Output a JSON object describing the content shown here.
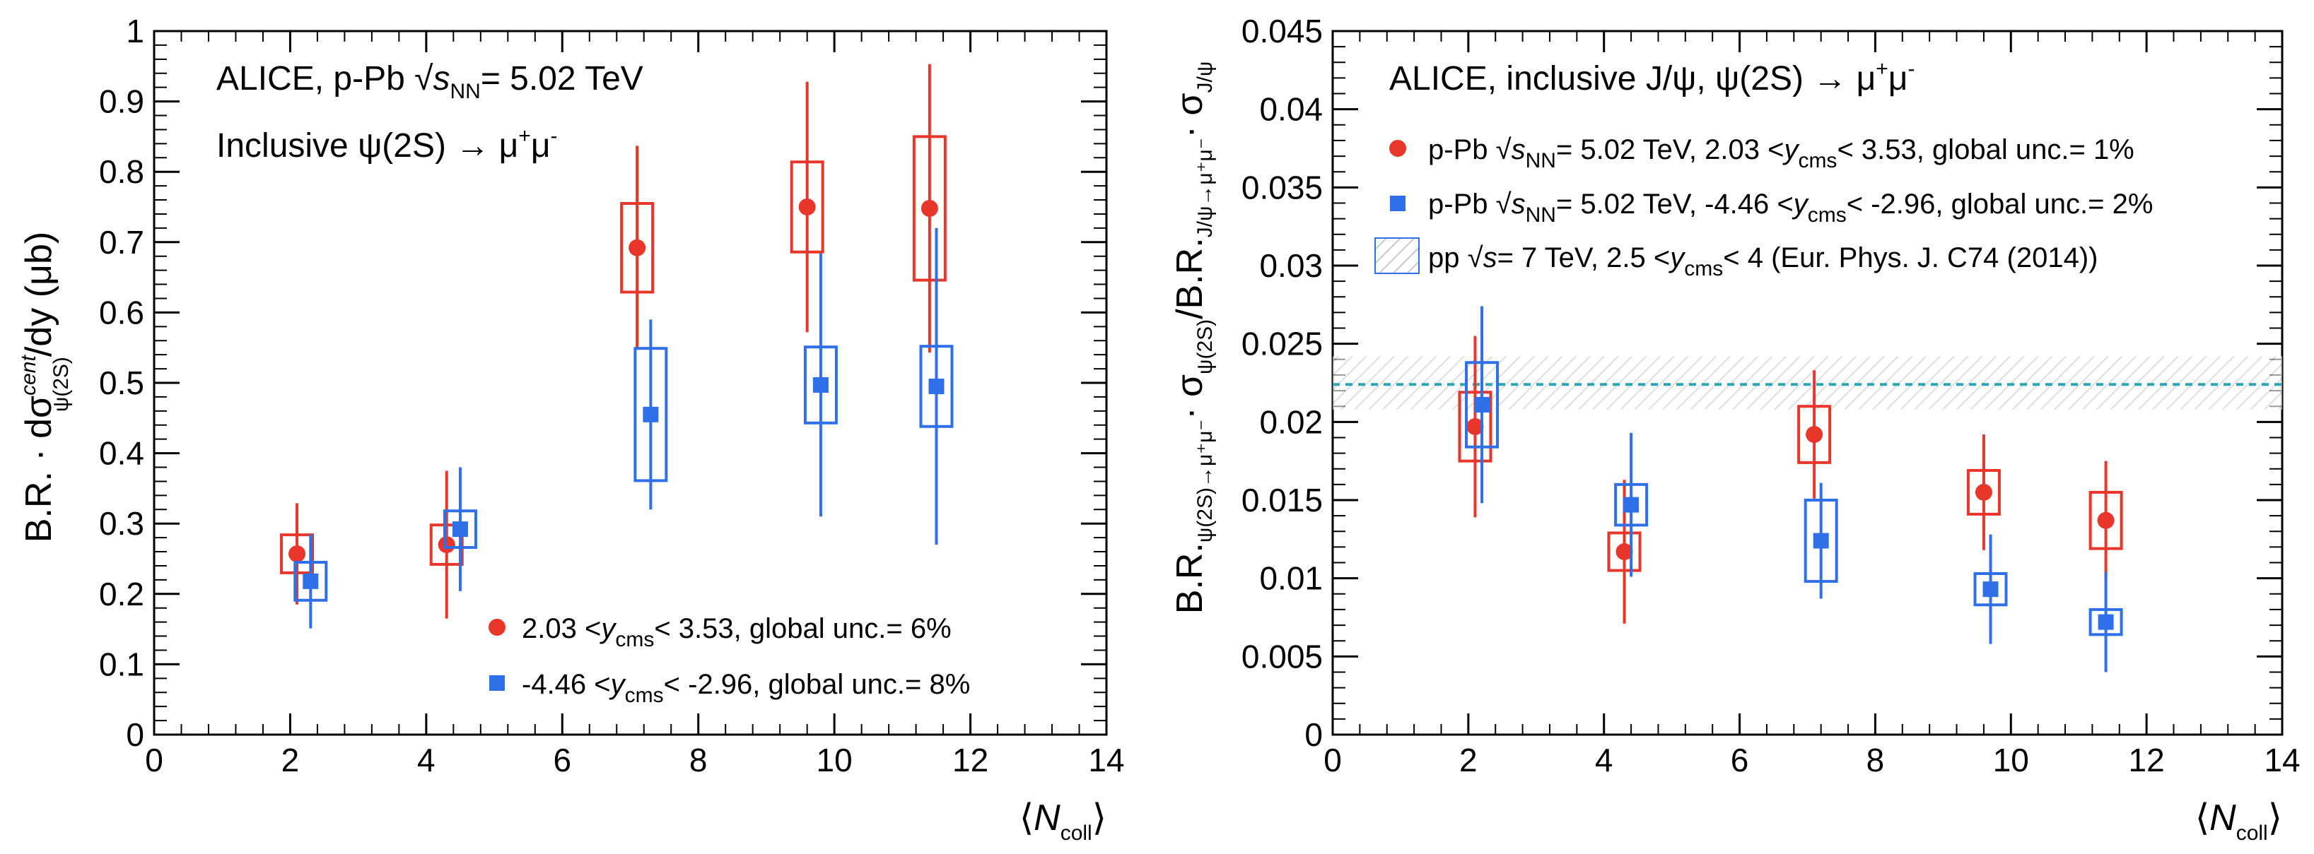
{
  "colors": {
    "red": "#e8372a",
    "blue": "#2f6fe8",
    "ref": "#2aa6b8",
    "hatch": "#c8c8c8"
  },
  "chart_data": [
    {
      "type": "scatter",
      "panel": "left",
      "title_lines": [
        "ALICE, p-Pb √sNN = 5.02 TeV",
        "Inclusive ψ(2S) → μ+μ-"
      ],
      "title_parts": {
        "l1_a": "ALICE, p-Pb ",
        "l1_sqrt": "√",
        "l1_s": "s",
        "l1_nn": "NN",
        "l1_b": "= 5.02 TeV",
        "l2_a": "Inclusive ψ(2S) → μ",
        "l2_plus": "+",
        "l2_mu": "μ",
        "l2_minus": "-"
      },
      "xlabel": "⟨Ncoll⟩",
      "xlabel_parts": {
        "open": "⟨",
        "N": "N",
        "sub": "coll",
        "close": "⟩"
      },
      "ylabel": "B.R. · dσcent ψ(2S) / dy (μb)",
      "ylabel_parts": {
        "main": "B.R. · dσ",
        "sup": "cent",
        "sub": "ψ(2S)",
        "rest": "/dy (μb)"
      },
      "xlim": [
        0,
        14
      ],
      "ylim": [
        0,
        1
      ],
      "xticks": [
        "0",
        "2",
        "4",
        "6",
        "8",
        "10",
        "12",
        "14"
      ],
      "yticks": [
        "0",
        "0.1",
        "0.2",
        "0.3",
        "0.4",
        "0.5",
        "0.6",
        "0.7",
        "0.8",
        "0.9",
        "1"
      ],
      "legend_placement": "bottom-right",
      "series": [
        {
          "name": "2.03 < ycms < 3.53, global unc.= 6%",
          "legend_parts": {
            "a": "2.03 <",
            "y": "y",
            "sub": "cms",
            "b": "< 3.53, global unc.= 6%"
          },
          "marker": "circle",
          "color": "red",
          "x": [
            2.1,
            4.3,
            7.1,
            9.6,
            11.4
          ],
          "y": [
            0.257,
            0.27,
            0.692,
            0.75,
            0.748
          ],
          "stat_err": [
            0.072,
            0.105,
            0.145,
            0.178,
            0.205
          ],
          "syst_err": [
            0.027,
            0.028,
            0.063,
            0.064,
            0.102
          ]
        },
        {
          "name": "-4.46 < ycms < -2.96, global unc.= 8%",
          "legend_parts": {
            "a": "-4.46 <",
            "y": "y",
            "sub": "cms",
            "b": "< -2.96, global unc.= 8%"
          },
          "marker": "square",
          "color": "blue",
          "x": [
            2.3,
            4.5,
            7.3,
            9.8,
            11.5
          ],
          "y": [
            0.218,
            0.292,
            0.455,
            0.497,
            0.495
          ],
          "stat_err": [
            0.067,
            0.088,
            0.135,
            0.187,
            0.225
          ],
          "syst_err": [
            0.027,
            0.026,
            0.094,
            0.054,
            0.057
          ]
        }
      ]
    },
    {
      "type": "scatter",
      "panel": "right",
      "title_lines": [
        "ALICE, inclusive J/ψ, ψ(2S) → μ+μ-"
      ],
      "title_parts": {
        "a": "ALICE, inclusive J/ψ, ψ(2S) → μ",
        "plus": "+",
        "mu": "μ",
        "minus": "-"
      },
      "xlabel": "⟨Ncoll⟩",
      "xlabel_parts": {
        "open": "⟨",
        "N": "N",
        "sub": "coll",
        "close": "⟩"
      },
      "ylabel": "B.R.ψ(2S)→μ+μ- σψ(2S) / B.R.J/ψ→μ+μ- σJ/ψ",
      "ylabel_parts": {
        "br": "B.R.",
        "sub1": "ψ(2S)→μ⁺μ⁻",
        "sigma": "· σ",
        "sub2": "ψ(2S)",
        "slash": "/B.R.",
        "sub3": "J/ψ→μ⁺μ⁻",
        "sigma2": "· σ",
        "sub4": "J/ψ"
      },
      "xlim": [
        0,
        14
      ],
      "ylim": [
        0,
        0.045
      ],
      "xticks": [
        "0",
        "2",
        "4",
        "6",
        "8",
        "10",
        "12",
        "14"
      ],
      "yticks": [
        "0",
        "0.005",
        "0.01",
        "0.015",
        "0.02",
        "0.025",
        "0.03",
        "0.035",
        "0.04",
        "0.045"
      ],
      "legend_placement": "top-right",
      "reference": {
        "name": "pp √s= 7 TeV, 2.5 < ycms < 4 (Eur. Phys. J. C74 (2014))",
        "legend_parts": {
          "a": "pp ",
          "sqrt": "√",
          "s": "s",
          "b": "= 7 TeV, 2.5 <",
          "y": "y",
          "sub": "cms",
          "c": "< 4 (Eur. Phys. J. C74 (2014))"
        },
        "value": 0.0224,
        "band": [
          0.0208,
          0.0242
        ]
      },
      "series": [
        {
          "name": "p-Pb √sNN = 5.02 TeV, 2.03 < ycms < 3.53, global unc.= 1%",
          "legend_parts": {
            "a": "p-Pb ",
            "sqrt": "√",
            "s": "s",
            "nn": "NN",
            "b": "= 5.02 TeV, 2.03 <",
            "y": "y",
            "sub": "cms",
            "c": "< 3.53, global unc.= 1%"
          },
          "marker": "circle",
          "color": "red",
          "x": [
            2.1,
            4.3,
            7.1,
            9.6,
            11.4
          ],
          "y": [
            0.0197,
            0.0117,
            0.0192,
            0.0155,
            0.0137
          ],
          "stat_err": [
            0.0058,
            0.0046,
            0.0041,
            0.0037,
            0.0038
          ],
          "syst_err": [
            0.0022,
            0.0012,
            0.0018,
            0.0014,
            0.0018
          ]
        },
        {
          "name": "p-Pb √sNN = 5.02 TeV, -4.46 < ycms < -2.96, global unc.= 2%",
          "legend_parts": {
            "a": "p-Pb ",
            "sqrt": "√",
            "s": "s",
            "nn": "NN",
            "b": "= 5.02 TeV, -4.46 <",
            "y": "y",
            "sub": "cms",
            "c": "< -2.96, global unc.= 2%"
          },
          "marker": "square",
          "color": "blue",
          "x": [
            2.2,
            4.4,
            7.2,
            9.7,
            11.4
          ],
          "y": [
            0.0211,
            0.0147,
            0.0124,
            0.0093,
            0.0072
          ],
          "stat_err": [
            0.0063,
            0.0046,
            0.0037,
            0.0035,
            0.0032
          ],
          "syst_err": [
            0.0027,
            0.0013,
            0.0026,
            0.001,
            0.0008
          ]
        }
      ]
    }
  ]
}
